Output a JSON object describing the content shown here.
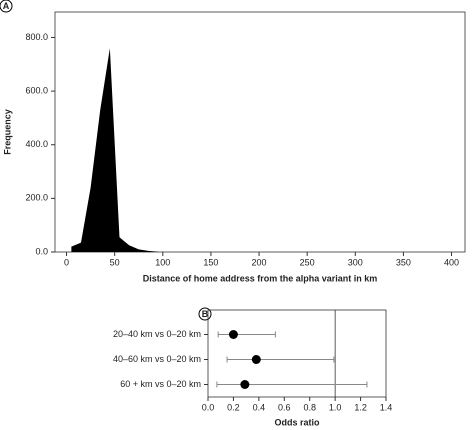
{
  "chart_data": [
    {
      "type": "area",
      "panel": "A",
      "x_label": "Distance of home address from the alpha variant in km",
      "y_label": "Frequency",
      "x": [
        5,
        15,
        25,
        35,
        45,
        55,
        65,
        75,
        85,
        95
      ],
      "values": [
        20,
        35,
        240,
        530,
        760,
        55,
        25,
        10,
        4,
        1
      ],
      "color": "#000000",
      "xlim": [
        -12,
        414
      ],
      "xticks": [
        0,
        50,
        100,
        150,
        200,
        250,
        300,
        350,
        400
      ],
      "ylim": [
        0,
        895
      ],
      "yticks": [
        {
          "value": 0,
          "label": "0.0"
        },
        {
          "value": 200,
          "label": "200.0"
        },
        {
          "value": 400,
          "label": "400.0"
        },
        {
          "value": 600,
          "label": "600.0"
        },
        {
          "value": 800,
          "label": "800.0"
        }
      ]
    },
    {
      "type": "forest",
      "panel": "B",
      "x_label": "Odds ratio",
      "categories": [
        "20–40 km vs 0–20 km",
        "40–60 km vs 0–20 km",
        "60 + km vs 0–20 km"
      ],
      "values": [
        0.2,
        0.38,
        0.29
      ],
      "ci_low": [
        0.08,
        0.15,
        0.07
      ],
      "ci_high": [
        0.53,
        0.99,
        1.25
      ],
      "reference_line": 1,
      "color": "#000000",
      "xlim": [
        0,
        1.4
      ],
      "xticks": [
        {
          "value": 0,
          "label": "0.0"
        },
        0.2,
        0.4,
        0.6,
        0.8,
        {
          "value": 1,
          "label": "1.0"
        },
        1.2,
        1.4
      ]
    }
  ]
}
